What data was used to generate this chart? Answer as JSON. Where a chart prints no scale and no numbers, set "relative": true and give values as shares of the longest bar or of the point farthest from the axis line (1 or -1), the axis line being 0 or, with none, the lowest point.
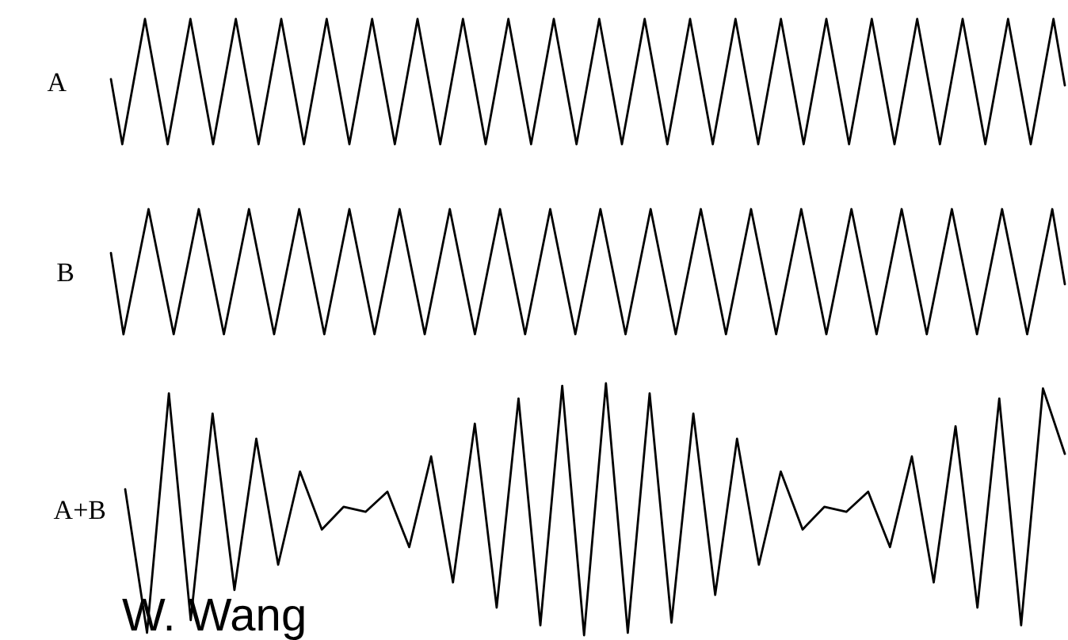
{
  "chart_data": [
    {
      "type": "line",
      "relative": true,
      "categories": [
        null,
        null,
        null,
        null,
        null,
        null,
        null,
        null,
        null,
        null,
        null,
        null,
        null,
        null,
        null,
        null,
        null,
        null,
        null,
        null,
        null,
        null,
        null,
        null,
        null,
        null,
        null,
        null,
        null,
        null,
        null,
        null,
        null,
        null,
        null,
        null,
        null,
        null,
        null,
        null,
        null,
        null,
        null,
        null,
        null,
        null,
        null,
        null,
        null,
        null,
        null,
        null,
        null,
        null,
        null,
        null,
        null,
        null,
        null,
        null,
        null,
        null,
        null,
        null,
        null,
        null,
        null,
        null,
        null,
        null,
        null,
        null,
        null,
        null,
        null,
        null,
        null,
        null,
        null,
        null,
        null,
        null,
        null,
        null,
        null
      ],
      "series": [
        {
          "name": "A",
          "color": "#000000",
          "values": [
            0.52,
            0,
            0.5,
            1,
            0.5,
            0,
            0.5,
            1,
            0.5,
            0,
            0.5,
            1,
            0.5,
            0,
            0.5,
            1,
            0.5,
            0,
            0.5,
            1,
            0.5,
            0,
            0.5,
            1,
            0.5,
            0,
            0.5,
            1,
            0.5,
            0,
            0.5,
            1,
            0.5,
            0,
            0.5,
            1,
            0.5,
            0,
            0.5,
            1,
            0.5,
            0,
            0.5,
            1,
            0.5,
            0,
            0.5,
            1,
            0.5,
            0,
            0.5,
            1,
            0.5,
            0,
            0.5,
            1,
            0.5,
            0,
            0.5,
            1,
            0.5,
            0,
            0.5,
            1,
            0.5,
            0,
            0.5,
            1,
            0.5,
            0,
            0.5,
            1,
            0.5,
            0,
            0.5,
            1,
            0.5,
            0,
            0.5,
            1,
            0.5,
            0,
            0.5,
            1,
            0.47
          ]
        }
      ]
    },
    {
      "type": "line",
      "relative": true,
      "categories": [
        null,
        null,
        null,
        null,
        null,
        null,
        null,
        null,
        null,
        null,
        null,
        null,
        null,
        null,
        null,
        null,
        null,
        null,
        null,
        null,
        null,
        null,
        null,
        null,
        null,
        null,
        null,
        null,
        null,
        null,
        null,
        null,
        null,
        null,
        null,
        null,
        null,
        null,
        null,
        null,
        null,
        null,
        null,
        null,
        null,
        null,
        null,
        null,
        null,
        null,
        null,
        null,
        null,
        null,
        null,
        null,
        null,
        null,
        null,
        null,
        null,
        null,
        null,
        null,
        null,
        null,
        null,
        null,
        null,
        null,
        null,
        null,
        null,
        null,
        null,
        null,
        null
      ],
      "series": [
        {
          "name": "B",
          "color": "#000000",
          "values": [
            0.65,
            0,
            0.5,
            1,
            0.5,
            0,
            0.5,
            1,
            0.5,
            0,
            0.5,
            1,
            0.5,
            0,
            0.5,
            1,
            0.5,
            0,
            0.5,
            1,
            0.5,
            0,
            0.5,
            1,
            0.5,
            0,
            0.5,
            1,
            0.5,
            0,
            0.5,
            1,
            0.5,
            0,
            0.5,
            1,
            0.5,
            0,
            0.5,
            1,
            0.5,
            0,
            0.5,
            1,
            0.5,
            0,
            0.5,
            1,
            0.5,
            0,
            0.5,
            1,
            0.5,
            0,
            0.5,
            1,
            0.5,
            0,
            0.5,
            1,
            0.5,
            0,
            0.5,
            1,
            0.5,
            0,
            0.5,
            1,
            0.5,
            0,
            0.5,
            1,
            0.5,
            0,
            0.5,
            1,
            0.4
          ]
        }
      ]
    },
    {
      "type": "line",
      "relative": true,
      "categories": [
        null,
        null,
        null,
        null,
        null,
        null,
        null,
        null,
        null,
        null,
        null,
        null,
        null,
        null,
        null,
        null,
        null,
        null,
        null,
        null,
        null,
        null,
        null,
        null,
        null,
        null,
        null,
        null,
        null,
        null,
        null,
        null,
        null,
        null,
        null,
        null,
        null,
        null,
        null,
        null,
        null,
        null,
        null,
        null
      ],
      "series": [
        {
          "name": "A+B",
          "color": "#000000",
          "values": [
            0.58,
            0.01,
            0.96,
            0.06,
            0.88,
            0.18,
            0.78,
            0.28,
            0.65,
            0.42,
            0.51,
            0.49,
            0.57,
            0.35,
            0.71,
            0.21,
            0.84,
            0.11,
            0.94,
            0.04,
            0.99,
            0,
            1,
            0.01,
            0.96,
            0.05,
            0.88,
            0.16,
            0.78,
            0.28,
            0.65,
            0.42,
            0.51,
            0.49,
            0.57,
            0.35,
            0.71,
            0.21,
            0.83,
            0.11,
            0.94,
            0.04,
            0.98,
            0.72
          ]
        }
      ],
      "annotations": [
        "W. Wang"
      ]
    }
  ]
}
